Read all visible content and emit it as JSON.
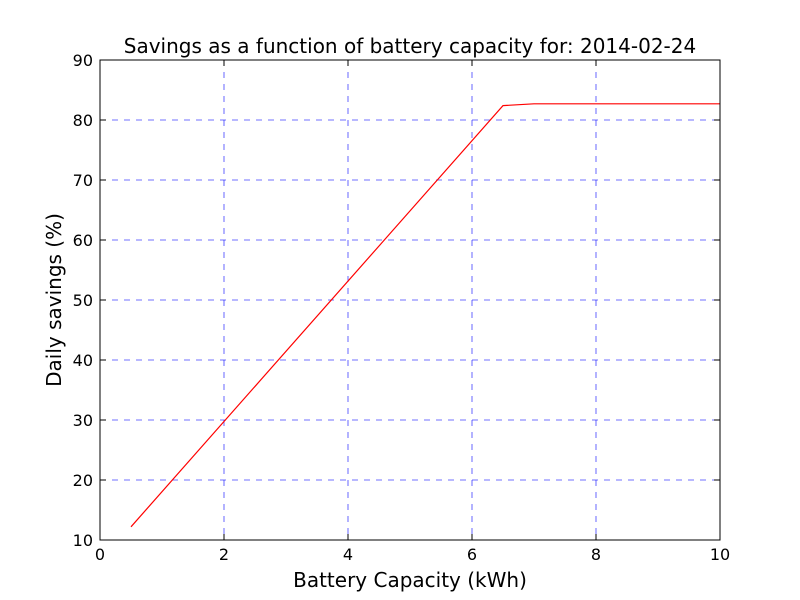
{
  "chart_data": {
    "type": "line",
    "title": "Savings as a function of battery capacity for: 2014-02-24",
    "xlabel": "Battery Capacity (kWh)",
    "ylabel": "Daily savings (%)",
    "xlim": [
      0,
      10
    ],
    "ylim": [
      10,
      90
    ],
    "xticks": [
      0,
      2,
      4,
      6,
      8,
      10
    ],
    "yticks": [
      10,
      20,
      30,
      40,
      50,
      60,
      70,
      80,
      90
    ],
    "xtick_labels": [
      "0",
      "2",
      "4",
      "6",
      "8",
      "10"
    ],
    "ytick_labels": [
      "10",
      "20",
      "30",
      "40",
      "50",
      "60",
      "70",
      "80",
      "90"
    ],
    "grid": true,
    "legend": "none",
    "series": [
      {
        "color": "#ff0000",
        "x": [
          0.5,
          6.5,
          7.0,
          8.0,
          9.0,
          10.0
        ],
        "y": [
          12.2,
          82.4,
          82.7,
          82.7,
          82.7,
          82.7
        ]
      }
    ]
  }
}
